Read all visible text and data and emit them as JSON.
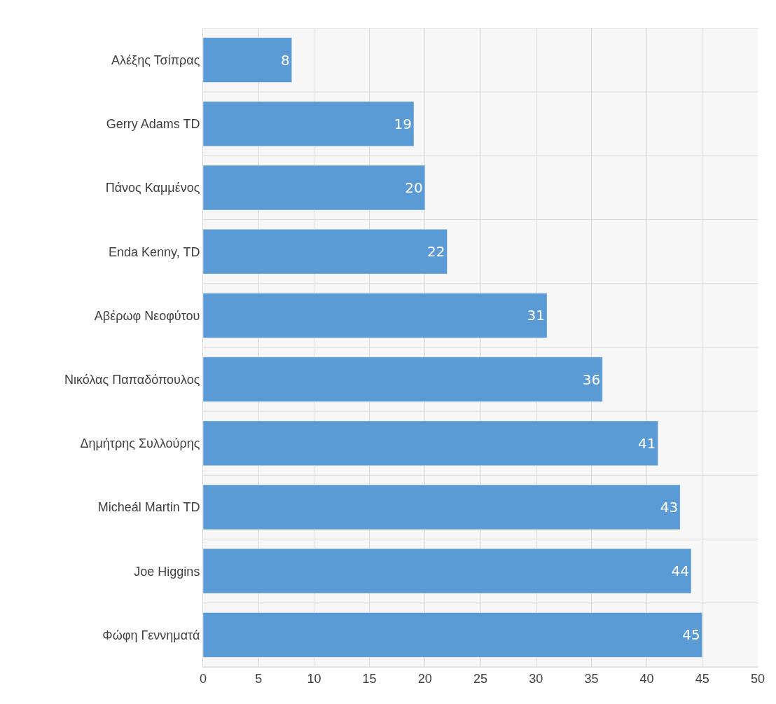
{
  "chart_data": {
    "type": "bar",
    "orientation": "horizontal",
    "categories": [
      "Αλέξης Τσίπρας",
      "Gerry Adams TD",
      "Πάνος Καμμένος",
      "Enda Kenny, TD",
      "Αβέρωφ Νεοφύτου",
      "Νικόλας Παπαδόπουλος",
      "Δημήτρης Συλλούρης",
      "Micheál Martin TD",
      "Joe Higgins",
      "Φώφη Γεννηματά"
    ],
    "values": [
      8,
      19,
      20,
      22,
      31,
      36,
      41,
      43,
      44,
      45
    ],
    "color": "#5b9bd5",
    "xlim": [
      0,
      50
    ],
    "xticks": [
      0,
      5,
      10,
      15,
      20,
      25,
      30,
      35,
      40,
      45,
      50
    ],
    "grid": true,
    "data_labels": true
  }
}
